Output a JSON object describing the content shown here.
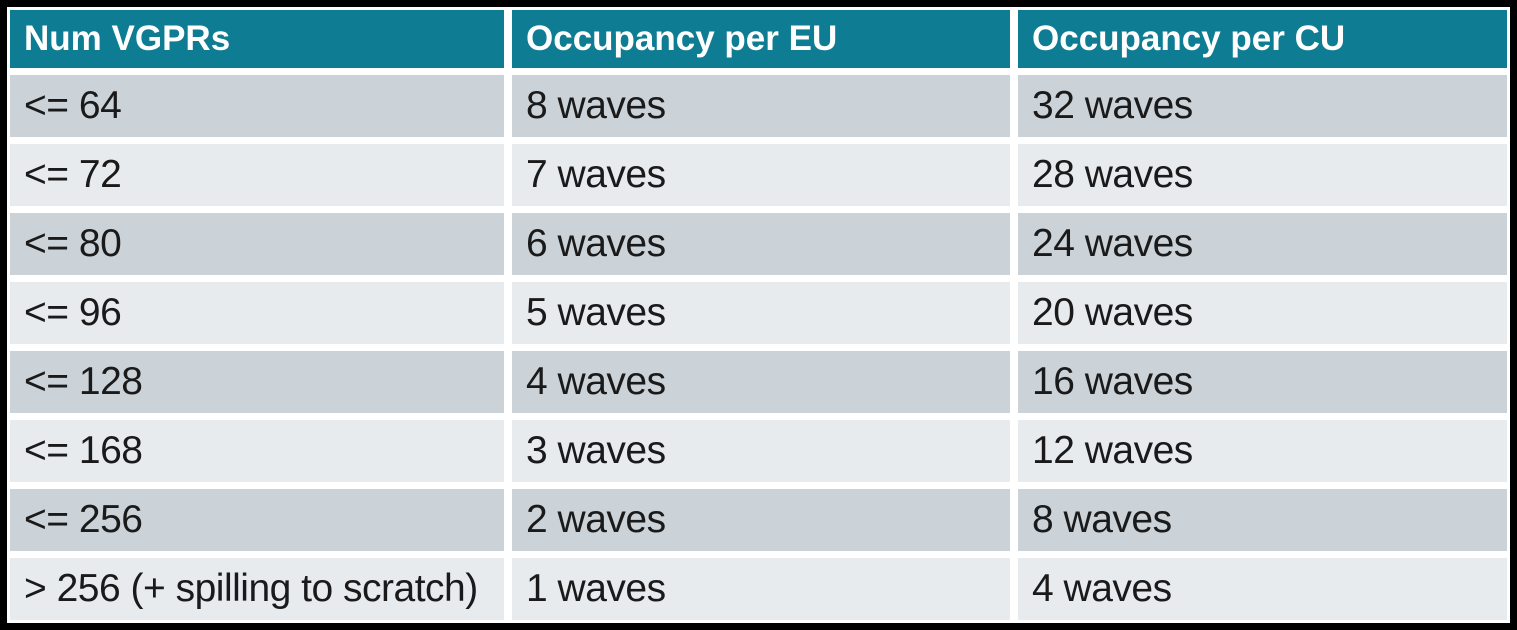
{
  "chart_data": {
    "type": "table",
    "columns": [
      "Num VGPRs",
      "Occupancy per EU",
      "Occupancy per CU"
    ],
    "rows": [
      [
        "<= 64",
        "8 waves",
        "32 waves"
      ],
      [
        "<= 72",
        "7 waves",
        "28 waves"
      ],
      [
        "<= 80",
        "6 waves",
        "24 waves"
      ],
      [
        "<= 96",
        "5 waves",
        "20 waves"
      ],
      [
        "<= 128",
        "4 waves",
        "16 waves"
      ],
      [
        "<= 168",
        "3 waves",
        "12 waves"
      ],
      [
        "<= 256",
        "2 waves",
        "8 waves"
      ],
      [
        "> 256 (+ spilling to scratch)",
        "1 waves",
        "4 waves"
      ]
    ]
  },
  "colors": {
    "header_bg": "#0E7C92",
    "header_text": "#FFFFFF",
    "row_dark": "#CBD3D9",
    "row_light": "#E7EBEE",
    "body_text": "#1A1A1A",
    "border": "#000000",
    "gap_bg": "#FFFFFF"
  }
}
